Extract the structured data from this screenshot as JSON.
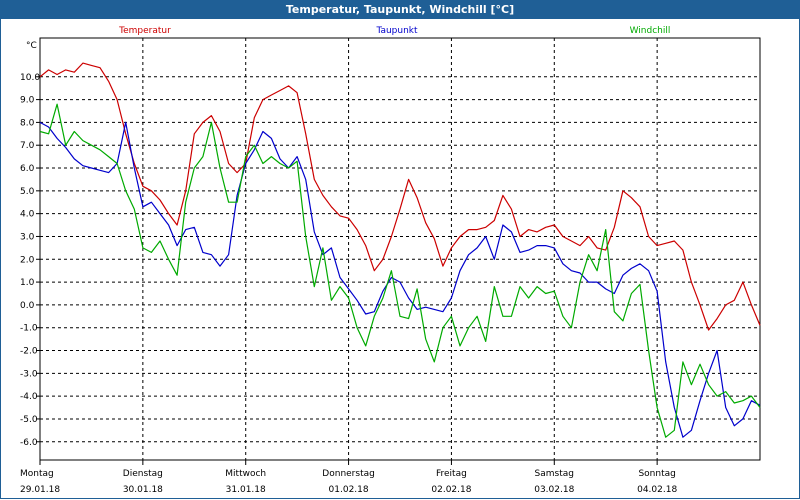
{
  "window": {
    "title": "Temperatur, Taupunkt, Windchill [°C]"
  },
  "chart_data": {
    "type": "line",
    "title": "Temperatur, Taupunkt, Windchill [°C]",
    "ylabel": "°C",
    "ylim": [
      -6.8,
      11.7
    ],
    "yticks": [
      10,
      9,
      8,
      7,
      6,
      5,
      4,
      3,
      2,
      1,
      0,
      -1,
      -2,
      -3,
      -4,
      -5,
      -6
    ],
    "ytick_labels": [
      "10.0",
      "9.0",
      "8.0",
      "7.0",
      "6.0",
      "5.0",
      "4.0",
      "3.0",
      "2.0",
      "1.0",
      "0.0",
      "-1.0",
      "-2.0",
      "-3.0",
      "-4.0",
      "-5.0",
      "-6.0"
    ],
    "xlim": [
      0,
      168
    ],
    "day_ticks": [
      0,
      24,
      48,
      72,
      96,
      120,
      144
    ],
    "grid_x": [
      24,
      48,
      72,
      96,
      120,
      144
    ],
    "days": [
      {
        "name": "Montag",
        "date": "29.01.18"
      },
      {
        "name": "Dienstag",
        "date": "30.01.18"
      },
      {
        "name": "Mittwoch",
        "date": "31.01.18"
      },
      {
        "name": "Donnerstag",
        "date": "01.02.18"
      },
      {
        "name": "Freitag",
        "date": "02.02.18"
      },
      {
        "name": "Samstag",
        "date": "03.02.18"
      },
      {
        "name": "Sonntag",
        "date": "04.02.18"
      }
    ],
    "series": [
      {
        "name": "Temperatur",
        "color": "#cc0000",
        "x": [
          0,
          2,
          4,
          6,
          8,
          10,
          12,
          14,
          16,
          18,
          20,
          22,
          24,
          26,
          28,
          30,
          32,
          34,
          36,
          38,
          40,
          42,
          44,
          46,
          48,
          50,
          52,
          54,
          56,
          58,
          60,
          62,
          64,
          66,
          68,
          70,
          72,
          74,
          76,
          78,
          80,
          82,
          84,
          86,
          88,
          90,
          92,
          94,
          96,
          98,
          100,
          102,
          104,
          106,
          108,
          110,
          112,
          114,
          116,
          118,
          120,
          122,
          124,
          126,
          128,
          130,
          132,
          134,
          136,
          138,
          140,
          142,
          144,
          146,
          148,
          150,
          152,
          154,
          156,
          158,
          160,
          162,
          164,
          166,
          168
        ],
        "values": [
          10.0,
          10.3,
          10.1,
          10.3,
          10.2,
          10.6,
          10.5,
          10.4,
          9.8,
          9.0,
          7.5,
          6.2,
          5.2,
          5.0,
          4.6,
          4.0,
          3.5,
          5.0,
          7.5,
          8.0,
          8.3,
          7.6,
          6.2,
          5.8,
          6.2,
          8.2,
          9.0,
          9.2,
          9.4,
          9.6,
          9.3,
          7.5,
          5.5,
          4.8,
          4.3,
          3.9,
          3.8,
          3.3,
          2.6,
          1.5,
          2.0,
          3.0,
          4.2,
          5.5,
          4.7,
          3.6,
          2.9,
          1.7,
          2.5,
          3.0,
          3.3,
          3.3,
          3.4,
          3.7,
          4.8,
          4.2,
          3.0,
          3.3,
          3.2,
          3.4,
          3.5,
          3.0,
          2.8,
          2.6,
          3.0,
          2.5,
          2.4,
          3.4,
          5.0,
          4.7,
          4.3,
          3.0,
          2.6,
          2.7,
          2.8,
          2.4,
          1.0,
          0.0,
          -1.1,
          -0.6,
          0.0,
          0.2,
          1.0,
          0.0,
          -0.9
        ]
      },
      {
        "name": "Taupunkt",
        "color": "#0000cc",
        "x": [
          0,
          2,
          4,
          6,
          8,
          10,
          12,
          14,
          16,
          18,
          20,
          22,
          24,
          26,
          28,
          30,
          32,
          34,
          36,
          38,
          40,
          42,
          44,
          46,
          48,
          50,
          52,
          54,
          56,
          58,
          60,
          62,
          64,
          66,
          68,
          70,
          72,
          74,
          76,
          78,
          80,
          82,
          84,
          86,
          88,
          90,
          92,
          94,
          96,
          98,
          100,
          102,
          104,
          106,
          108,
          110,
          112,
          114,
          116,
          118,
          120,
          122,
          124,
          126,
          128,
          130,
          132,
          134,
          136,
          138,
          140,
          142,
          144,
          146,
          148,
          150,
          152,
          154,
          156,
          158,
          160,
          162,
          164,
          166,
          168
        ],
        "values": [
          8.0,
          7.8,
          7.3,
          6.9,
          6.4,
          6.1,
          6.0,
          5.9,
          5.8,
          6.2,
          8.0,
          6.0,
          4.3,
          4.5,
          4.0,
          3.5,
          2.6,
          3.3,
          3.4,
          2.3,
          2.2,
          1.7,
          2.2,
          4.8,
          6.2,
          6.8,
          7.6,
          7.3,
          6.4,
          6.0,
          6.5,
          5.5,
          3.2,
          2.2,
          2.5,
          1.2,
          0.7,
          0.2,
          -0.4,
          -0.3,
          0.6,
          1.2,
          1.0,
          0.3,
          -0.2,
          -0.1,
          -0.2,
          -0.3,
          0.3,
          1.5,
          2.2,
          2.5,
          3.0,
          2.0,
          3.5,
          3.2,
          2.3,
          2.4,
          2.6,
          2.6,
          2.5,
          1.8,
          1.5,
          1.4,
          1.0,
          1.0,
          0.7,
          0.5,
          1.3,
          1.6,
          1.8,
          1.5,
          0.6,
          -2.5,
          -4.5,
          -5.8,
          -5.5,
          -4.2,
          -3.0,
          -2.0,
          -4.5,
          -5.3,
          -5.0,
          -4.2,
          -4.4
        ]
      },
      {
        "name": "Windchill",
        "color": "#00aa00",
        "x": [
          0,
          2,
          4,
          6,
          8,
          10,
          12,
          14,
          16,
          18,
          20,
          22,
          24,
          26,
          28,
          30,
          32,
          34,
          36,
          38,
          40,
          42,
          44,
          46,
          48,
          50,
          52,
          54,
          56,
          58,
          60,
          62,
          64,
          66,
          68,
          70,
          72,
          74,
          76,
          78,
          80,
          82,
          84,
          86,
          88,
          90,
          92,
          94,
          96,
          98,
          100,
          102,
          104,
          106,
          108,
          110,
          112,
          114,
          116,
          118,
          120,
          122,
          124,
          126,
          128,
          130,
          132,
          134,
          136,
          138,
          140,
          142,
          144,
          146,
          148,
          150,
          152,
          154,
          156,
          158,
          160,
          162,
          164,
          166,
          168
        ],
        "values": [
          7.6,
          7.5,
          8.8,
          7.0,
          7.6,
          7.2,
          7.0,
          6.8,
          6.5,
          6.2,
          5.0,
          4.2,
          2.5,
          2.3,
          2.8,
          2.0,
          1.3,
          4.5,
          6.0,
          6.5,
          8.0,
          6.0,
          4.5,
          4.5,
          6.5,
          7.0,
          6.2,
          6.5,
          6.2,
          6.0,
          6.3,
          3.0,
          0.8,
          2.5,
          0.2,
          0.8,
          0.3,
          -1.0,
          -1.8,
          -0.5,
          0.3,
          1.5,
          -0.5,
          -0.6,
          0.7,
          -1.5,
          -2.5,
          -1.0,
          -0.5,
          -1.8,
          -1.0,
          -0.5,
          -1.6,
          0.8,
          -0.5,
          -0.5,
          0.8,
          0.3,
          0.8,
          0.5,
          0.6,
          -0.5,
          -1.0,
          1.0,
          2.2,
          1.5,
          3.3,
          -0.3,
          -0.7,
          0.5,
          0.9,
          -2.0,
          -4.5,
          -5.8,
          -5.5,
          -2.5,
          -3.5,
          -2.6,
          -3.5,
          -4.0,
          -3.8,
          -4.3,
          -4.2,
          -4.0,
          -4.5
        ]
      }
    ]
  }
}
